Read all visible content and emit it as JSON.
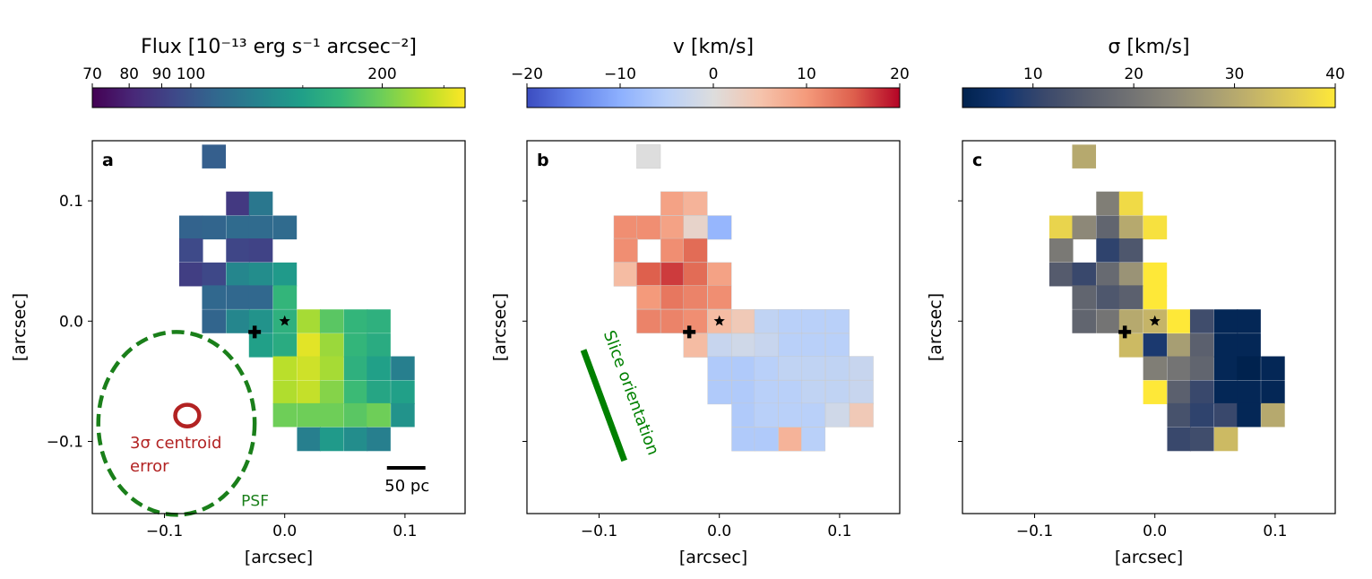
{
  "chart_data": [
    {
      "type": "heatmap",
      "panel_label": "a",
      "colorbar": {
        "title": "Flux [10⁻¹³ erg s⁻¹ arcsec⁻²]",
        "colormap": "viridis",
        "scale": "log",
        "range": [
          70,
          270
        ],
        "ticks": [
          70,
          80,
          90,
          100,
          200
        ],
        "tick_labels": [
          "70",
          "80",
          "90",
          "100",
          "200"
        ]
      },
      "xlabel": "[arcsec]",
      "ylabel": "[arcsec]",
      "xlim": [
        -0.16,
        0.15
      ],
      "ylim": [
        -0.16,
        0.15
      ],
      "xticks": [
        -0.1,
        0.0,
        0.1
      ],
      "xtick_labels": [
        "−0.1",
        "0.0",
        "0.1"
      ],
      "yticks": [
        -0.1,
        0.0,
        0.1
      ],
      "ytick_labels": [
        "−0.1",
        "0.0",
        "0.1"
      ],
      "pixel_size": 0.0195,
      "cells": [
        {
          "x": -0.059,
          "y": 0.137,
          "v": 105
        },
        {
          "x": -0.039,
          "y": 0.098,
          "v": 88
        },
        {
          "x": -0.02,
          "y": 0.098,
          "v": 120
        },
        {
          "x": -0.078,
          "y": 0.078,
          "v": 107
        },
        {
          "x": -0.059,
          "y": 0.078,
          "v": 108
        },
        {
          "x": -0.039,
          "y": 0.078,
          "v": 112
        },
        {
          "x": -0.02,
          "y": 0.078,
          "v": 112
        },
        {
          "x": 0.0,
          "y": 0.078,
          "v": 112
        },
        {
          "x": -0.078,
          "y": 0.059,
          "v": 95
        },
        {
          "x": -0.039,
          "y": 0.059,
          "v": 93
        },
        {
          "x": -0.02,
          "y": 0.059,
          "v": 92
        },
        {
          "x": -0.078,
          "y": 0.039,
          "v": 90
        },
        {
          "x": -0.059,
          "y": 0.039,
          "v": 94
        },
        {
          "x": -0.039,
          "y": 0.039,
          "v": 130
        },
        {
          "x": -0.02,
          "y": 0.039,
          "v": 135
        },
        {
          "x": 0.0,
          "y": 0.039,
          "v": 145
        },
        {
          "x": -0.059,
          "y": 0.02,
          "v": 110
        },
        {
          "x": -0.039,
          "y": 0.02,
          "v": 110
        },
        {
          "x": -0.02,
          "y": 0.02,
          "v": 110
        },
        {
          "x": 0.0,
          "y": 0.02,
          "v": 170
        },
        {
          "x": -0.059,
          "y": 0.0,
          "v": 108
        },
        {
          "x": -0.039,
          "y": 0.0,
          "v": 130
        },
        {
          "x": -0.02,
          "y": 0.0,
          "v": 140
        },
        {
          "x": 0.0,
          "y": 0.0,
          "v": 165
        },
        {
          "x": 0.02,
          "y": 0.0,
          "v": 225
        },
        {
          "x": 0.039,
          "y": 0.0,
          "v": 190
        },
        {
          "x": 0.059,
          "y": 0.0,
          "v": 170
        },
        {
          "x": 0.078,
          "y": 0.0,
          "v": 165
        },
        {
          "x": -0.02,
          "y": -0.02,
          "v": 150
        },
        {
          "x": 0.0,
          "y": -0.02,
          "v": 160
        },
        {
          "x": 0.02,
          "y": -0.02,
          "v": 255
        },
        {
          "x": 0.039,
          "y": -0.02,
          "v": 220
        },
        {
          "x": 0.059,
          "y": -0.02,
          "v": 170
        },
        {
          "x": 0.078,
          "y": -0.02,
          "v": 160
        },
        {
          "x": 0.0,
          "y": -0.039,
          "v": 235
        },
        {
          "x": 0.02,
          "y": -0.039,
          "v": 245
        },
        {
          "x": 0.039,
          "y": -0.039,
          "v": 225
        },
        {
          "x": 0.059,
          "y": -0.039,
          "v": 165
        },
        {
          "x": 0.078,
          "y": -0.039,
          "v": 150
        },
        {
          "x": 0.098,
          "y": -0.039,
          "v": 125
        },
        {
          "x": 0.0,
          "y": -0.059,
          "v": 230
        },
        {
          "x": 0.02,
          "y": -0.059,
          "v": 240
        },
        {
          "x": 0.039,
          "y": -0.059,
          "v": 210
        },
        {
          "x": 0.059,
          "y": -0.059,
          "v": 175
        },
        {
          "x": 0.078,
          "y": -0.059,
          "v": 155
        },
        {
          "x": 0.098,
          "y": -0.059,
          "v": 150
        },
        {
          "x": 0.0,
          "y": -0.078,
          "v": 200
        },
        {
          "x": 0.02,
          "y": -0.078,
          "v": 200
        },
        {
          "x": 0.039,
          "y": -0.078,
          "v": 200
        },
        {
          "x": 0.059,
          "y": -0.078,
          "v": 190
        },
        {
          "x": 0.078,
          "y": -0.078,
          "v": 200
        },
        {
          "x": 0.098,
          "y": -0.078,
          "v": 140
        },
        {
          "x": 0.02,
          "y": -0.098,
          "v": 125
        },
        {
          "x": 0.039,
          "y": -0.098,
          "v": 145
        },
        {
          "x": 0.059,
          "y": -0.098,
          "v": 135
        },
        {
          "x": 0.078,
          "y": -0.098,
          "v": 125
        }
      ],
      "markers": [
        {
          "kind": "star",
          "x": 0.0,
          "y": 0.0
        },
        {
          "kind": "cross",
          "x": -0.025,
          "y": -0.009
        }
      ],
      "annotations": {
        "psf": {
          "label": "PSF",
          "cx": -0.09,
          "cy": -0.085,
          "rx": 0.065,
          "ry": 0.076,
          "color": "#1a7f1a"
        },
        "centroid": {
          "label_line1": "3σ centroid",
          "label_line2": "error",
          "cx": -0.09,
          "cy": -0.08,
          "rx": 0.01,
          "ry": 0.009,
          "color": "#b22222"
        },
        "scalebar": {
          "label": "50 pc",
          "x0": 0.085,
          "x1": 0.117,
          "y": -0.122
        }
      }
    },
    {
      "type": "heatmap",
      "panel_label": "b",
      "colorbar": {
        "title": "v [km/s]",
        "colormap": "coolwarm",
        "scale": "linear",
        "range": [
          -20,
          20
        ],
        "ticks": [
          -20,
          -10,
          0,
          10,
          20
        ],
        "tick_labels": [
          "−20",
          "−10",
          "0",
          "10",
          "20"
        ]
      },
      "xlabel": "[arcsec]",
      "ylabel": "[arcsec]",
      "xlim": [
        -0.16,
        0.15
      ],
      "ylim": [
        -0.16,
        0.15
      ],
      "xticks": [
        -0.1,
        0.0,
        0.1
      ],
      "xtick_labels": [
        "−0.1",
        "0.0",
        "0.1"
      ],
      "yticks": [
        -0.1,
        0.0,
        0.1
      ],
      "pixel_size": 0.0195,
      "cells": [
        {
          "x": -0.059,
          "y": 0.137,
          "v": 0
        },
        {
          "x": -0.039,
          "y": 0.098,
          "v": 9
        },
        {
          "x": -0.02,
          "y": 0.098,
          "v": 7
        },
        {
          "x": -0.078,
          "y": 0.078,
          "v": 11
        },
        {
          "x": -0.059,
          "y": 0.078,
          "v": 11
        },
        {
          "x": -0.039,
          "y": 0.078,
          "v": 9
        },
        {
          "x": -0.02,
          "y": 0.078,
          "v": 2
        },
        {
          "x": 0.0,
          "y": 0.078,
          "v": -9
        },
        {
          "x": -0.078,
          "y": 0.059,
          "v": 11
        },
        {
          "x": -0.039,
          "y": 0.059,
          "v": 11
        },
        {
          "x": -0.02,
          "y": 0.059,
          "v": 14
        },
        {
          "x": -0.078,
          "y": 0.039,
          "v": 6
        },
        {
          "x": -0.059,
          "y": 0.039,
          "v": 15
        },
        {
          "x": -0.039,
          "y": 0.039,
          "v": 17
        },
        {
          "x": -0.02,
          "y": 0.039,
          "v": 14
        },
        {
          "x": 0.0,
          "y": 0.039,
          "v": 9
        },
        {
          "x": -0.059,
          "y": 0.02,
          "v": 10
        },
        {
          "x": -0.039,
          "y": 0.02,
          "v": 13
        },
        {
          "x": -0.02,
          "y": 0.02,
          "v": 12
        },
        {
          "x": 0.0,
          "y": 0.02,
          "v": 11
        },
        {
          "x": -0.059,
          "y": 0.0,
          "v": 12
        },
        {
          "x": -0.039,
          "y": 0.0,
          "v": 12
        },
        {
          "x": -0.02,
          "y": 0.0,
          "v": 11
        },
        {
          "x": 0.0,
          "y": 0.0,
          "v": 6
        },
        {
          "x": 0.02,
          "y": 0.0,
          "v": 4
        },
        {
          "x": 0.039,
          "y": 0.0,
          "v": -4
        },
        {
          "x": 0.059,
          "y": 0.0,
          "v": -5
        },
        {
          "x": 0.078,
          "y": 0.0,
          "v": -5
        },
        {
          "x": 0.098,
          "y": 0.0,
          "v": -5
        },
        {
          "x": -0.02,
          "y": -0.02,
          "v": 6
        },
        {
          "x": 0.0,
          "y": -0.02,
          "v": -3
        },
        {
          "x": 0.02,
          "y": -0.02,
          "v": -2
        },
        {
          "x": 0.039,
          "y": -0.02,
          "v": -3
        },
        {
          "x": 0.059,
          "y": -0.02,
          "v": -5
        },
        {
          "x": 0.078,
          "y": -0.02,
          "v": -5
        },
        {
          "x": 0.098,
          "y": -0.02,
          "v": -5
        },
        {
          "x": 0.0,
          "y": -0.039,
          "v": -6
        },
        {
          "x": 0.02,
          "y": -0.039,
          "v": -6
        },
        {
          "x": 0.039,
          "y": -0.039,
          "v": -5
        },
        {
          "x": 0.059,
          "y": -0.039,
          "v": -4
        },
        {
          "x": 0.078,
          "y": -0.039,
          "v": -4
        },
        {
          "x": 0.098,
          "y": -0.039,
          "v": -4
        },
        {
          "x": 0.118,
          "y": -0.039,
          "v": -3
        },
        {
          "x": 0.0,
          "y": -0.059,
          "v": -6
        },
        {
          "x": 0.02,
          "y": -0.059,
          "v": -6
        },
        {
          "x": 0.039,
          "y": -0.059,
          "v": -5
        },
        {
          "x": 0.059,
          "y": -0.059,
          "v": -5
        },
        {
          "x": 0.078,
          "y": -0.059,
          "v": -4
        },
        {
          "x": 0.098,
          "y": -0.059,
          "v": -4
        },
        {
          "x": 0.118,
          "y": -0.059,
          "v": -3
        },
        {
          "x": 0.02,
          "y": -0.078,
          "v": -6
        },
        {
          "x": 0.039,
          "y": -0.078,
          "v": -5
        },
        {
          "x": 0.059,
          "y": -0.078,
          "v": -5
        },
        {
          "x": 0.078,
          "y": -0.078,
          "v": -5
        },
        {
          "x": 0.098,
          "y": -0.078,
          "v": -2
        },
        {
          "x": 0.118,
          "y": -0.078,
          "v": 4
        },
        {
          "x": 0.02,
          "y": -0.098,
          "v": -6
        },
        {
          "x": 0.039,
          "y": -0.098,
          "v": -6
        },
        {
          "x": 0.059,
          "y": -0.098,
          "v": 7
        },
        {
          "x": 0.078,
          "y": -0.098,
          "v": -5
        }
      ],
      "markers": [
        {
          "kind": "star",
          "x": 0.0,
          "y": 0.0
        },
        {
          "kind": "cross",
          "x": -0.025,
          "y": -0.009
        }
      ],
      "annotations": {
        "slice": {
          "label": "Slice orientation",
          "x0": -0.113,
          "y0": -0.024,
          "x1": -0.079,
          "y1": -0.116,
          "color": "#008000"
        }
      }
    },
    {
      "type": "heatmap",
      "panel_label": "c",
      "colorbar": {
        "title": "σ [km/s]",
        "colormap": "cividis",
        "scale": "linear",
        "range": [
          3,
          40
        ],
        "ticks": [
          10,
          20,
          30,
          40
        ],
        "tick_labels": [
          "10",
          "20",
          "30",
          "40"
        ]
      },
      "xlabel": "[arcsec]",
      "ylabel": "[arcsec]",
      "xlim": [
        -0.16,
        0.15
      ],
      "ylim": [
        -0.16,
        0.15
      ],
      "xticks": [
        -0.1,
        0.0,
        0.1
      ],
      "xtick_labels": [
        "−0.1",
        "0.0",
        "0.1"
      ],
      "yticks": [
        -0.1,
        0.0,
        0.1
      ],
      "pixel_size": 0.0195,
      "cells": [
        {
          "x": -0.059,
          "y": 0.137,
          "v": 30
        },
        {
          "x": -0.039,
          "y": 0.098,
          "v": 22
        },
        {
          "x": -0.02,
          "y": 0.098,
          "v": 38
        },
        {
          "x": -0.078,
          "y": 0.078,
          "v": 37
        },
        {
          "x": -0.059,
          "y": 0.078,
          "v": 24
        },
        {
          "x": -0.039,
          "y": 0.078,
          "v": 17
        },
        {
          "x": -0.02,
          "y": 0.078,
          "v": 30
        },
        {
          "x": 0.0,
          "y": 0.078,
          "v": 39
        },
        {
          "x": -0.078,
          "y": 0.059,
          "v": 21
        },
        {
          "x": -0.039,
          "y": 0.059,
          "v": 10
        },
        {
          "x": -0.02,
          "y": 0.059,
          "v": 14
        },
        {
          "x": -0.078,
          "y": 0.039,
          "v": 15
        },
        {
          "x": -0.059,
          "y": 0.039,
          "v": 11
        },
        {
          "x": -0.039,
          "y": 0.039,
          "v": 18
        },
        {
          "x": -0.02,
          "y": 0.039,
          "v": 26
        },
        {
          "x": 0.0,
          "y": 0.039,
          "v": 40
        },
        {
          "x": -0.059,
          "y": 0.02,
          "v": 17
        },
        {
          "x": -0.039,
          "y": 0.02,
          "v": 14
        },
        {
          "x": -0.02,
          "y": 0.02,
          "v": 16
        },
        {
          "x": 0.0,
          "y": 0.02,
          "v": 40
        },
        {
          "x": -0.059,
          "y": 0.0,
          "v": 17
        },
        {
          "x": -0.039,
          "y": 0.0,
          "v": 20
        },
        {
          "x": -0.02,
          "y": 0.0,
          "v": 30
        },
        {
          "x": 0.0,
          "y": 0.0,
          "v": 32
        },
        {
          "x": 0.02,
          "y": 0.0,
          "v": 40
        },
        {
          "x": 0.039,
          "y": 0.0,
          "v": 12
        },
        {
          "x": 0.059,
          "y": 0.0,
          "v": 4
        },
        {
          "x": 0.078,
          "y": 0.0,
          "v": 4
        },
        {
          "x": -0.02,
          "y": -0.02,
          "v": 33
        },
        {
          "x": 0.0,
          "y": -0.02,
          "v": 8
        },
        {
          "x": 0.02,
          "y": -0.02,
          "v": 28
        },
        {
          "x": 0.039,
          "y": -0.02,
          "v": 16
        },
        {
          "x": 0.059,
          "y": -0.02,
          "v": 4
        },
        {
          "x": 0.078,
          "y": -0.02,
          "v": 4
        },
        {
          "x": 0.0,
          "y": -0.039,
          "v": 22
        },
        {
          "x": 0.02,
          "y": -0.039,
          "v": 20
        },
        {
          "x": 0.039,
          "y": -0.039,
          "v": 17
        },
        {
          "x": 0.059,
          "y": -0.039,
          "v": 4
        },
        {
          "x": 0.078,
          "y": -0.039,
          "v": 3
        },
        {
          "x": 0.098,
          "y": -0.039,
          "v": 4
        },
        {
          "x": 0.0,
          "y": -0.059,
          "v": 40
        },
        {
          "x": 0.02,
          "y": -0.059,
          "v": 16
        },
        {
          "x": 0.039,
          "y": -0.059,
          "v": 11
        },
        {
          "x": 0.059,
          "y": -0.059,
          "v": 4
        },
        {
          "x": 0.078,
          "y": -0.059,
          "v": 4
        },
        {
          "x": 0.098,
          "y": -0.059,
          "v": 4
        },
        {
          "x": 0.02,
          "y": -0.078,
          "v": 13
        },
        {
          "x": 0.039,
          "y": -0.078,
          "v": 10
        },
        {
          "x": 0.059,
          "y": -0.078,
          "v": 11
        },
        {
          "x": 0.078,
          "y": -0.078,
          "v": 4
        },
        {
          "x": 0.098,
          "y": -0.078,
          "v": 30
        },
        {
          "x": 0.02,
          "y": -0.098,
          "v": 11
        },
        {
          "x": 0.039,
          "y": -0.098,
          "v": 12
        },
        {
          "x": 0.059,
          "y": -0.098,
          "v": 33
        }
      ],
      "markers": [
        {
          "kind": "star",
          "x": 0.0,
          "y": 0.0
        },
        {
          "kind": "cross",
          "x": -0.025,
          "y": -0.009
        }
      ]
    }
  ]
}
